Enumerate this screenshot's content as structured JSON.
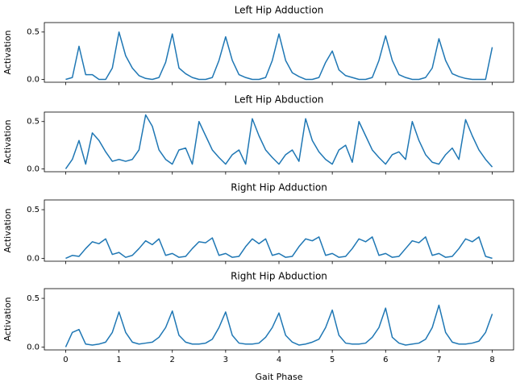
{
  "chart_data": [
    {
      "type": "line",
      "title": "Left Hip Adduction",
      "ylabel": "Activation",
      "color": "#1f77b4",
      "x": [
        0,
        0.125,
        0.25,
        0.375,
        0.5,
        0.625,
        0.75,
        0.875,
        1,
        1.125,
        1.25,
        1.375,
        1.5,
        1.625,
        1.75,
        1.875,
        2,
        2.125,
        2.25,
        2.375,
        2.5,
        2.625,
        2.75,
        2.875,
        3,
        3.125,
        3.25,
        3.375,
        3.5,
        3.625,
        3.75,
        3.875,
        4,
        4.125,
        4.25,
        4.375,
        4.5,
        4.625,
        4.75,
        4.875,
        5,
        5.125,
        5.25,
        5.375,
        5.5,
        5.625,
        5.75,
        5.875,
        6,
        6.125,
        6.25,
        6.375,
        6.5,
        6.625,
        6.75,
        6.875,
        7,
        7.125,
        7.25,
        7.375,
        7.5,
        7.625,
        7.75,
        7.875,
        8
      ],
      "values": [
        0,
        0.02,
        0.35,
        0.05,
        0.05,
        0,
        0,
        0.12,
        0.5,
        0.25,
        0.12,
        0.04,
        0.01,
        0,
        0.02,
        0.18,
        0.48,
        0.12,
        0.06,
        0.02,
        0,
        0,
        0.02,
        0.2,
        0.45,
        0.2,
        0.05,
        0.02,
        0,
        0,
        0.02,
        0.2,
        0.48,
        0.2,
        0.07,
        0.03,
        0,
        0,
        0.02,
        0.18,
        0.3,
        0.1,
        0.04,
        0.02,
        0,
        0,
        0.02,
        0.2,
        0.46,
        0.2,
        0.05,
        0.02,
        0,
        0,
        0.02,
        0.12,
        0.43,
        0.2,
        0.06,
        0.03,
        0.01,
        0,
        0,
        0,
        0.34
      ],
      "xlim": [
        -0.4,
        8.4
      ],
      "xticks": [
        0,
        1,
        2,
        3,
        4,
        5,
        6,
        7,
        8
      ],
      "ylim": [
        -0.03,
        0.6
      ],
      "yticks": [
        {
          "value": 0,
          "label": "0.0"
        },
        0.5
      ]
    },
    {
      "type": "line",
      "title": "Left Hip Abduction",
      "ylabel": "Activation",
      "color": "#1f77b4",
      "x": [
        0,
        0.125,
        0.25,
        0.375,
        0.5,
        0.625,
        0.75,
        0.875,
        1,
        1.125,
        1.25,
        1.375,
        1.5,
        1.625,
        1.75,
        1.875,
        2,
        2.125,
        2.25,
        2.375,
        2.5,
        2.625,
        2.75,
        2.875,
        3,
        3.125,
        3.25,
        3.375,
        3.5,
        3.625,
        3.75,
        3.875,
        4,
        4.125,
        4.25,
        4.375,
        4.5,
        4.625,
        4.75,
        4.875,
        5,
        5.125,
        5.25,
        5.375,
        5.5,
        5.625,
        5.75,
        5.875,
        6,
        6.125,
        6.25,
        6.375,
        6.5,
        6.625,
        6.75,
        6.875,
        7,
        7.125,
        7.25,
        7.375,
        7.5,
        7.625,
        7.75,
        7.875,
        8
      ],
      "values": [
        0,
        0.1,
        0.3,
        0.05,
        0.38,
        0.3,
        0.18,
        0.08,
        0.1,
        0.08,
        0.1,
        0.2,
        0.57,
        0.45,
        0.2,
        0.1,
        0.05,
        0.2,
        0.22,
        0.05,
        0.5,
        0.35,
        0.2,
        0.12,
        0.05,
        0.15,
        0.2,
        0.05,
        0.53,
        0.35,
        0.2,
        0.12,
        0.05,
        0.15,
        0.2,
        0.08,
        0.53,
        0.3,
        0.18,
        0.1,
        0.05,
        0.2,
        0.25,
        0.07,
        0.5,
        0.35,
        0.2,
        0.12,
        0.05,
        0.15,
        0.18,
        0.1,
        0.5,
        0.3,
        0.15,
        0.07,
        0.05,
        0.15,
        0.22,
        0.1,
        0.52,
        0.35,
        0.2,
        0.1,
        0.02
      ],
      "xlim": [
        -0.4,
        8.4
      ],
      "xticks": [
        0,
        1,
        2,
        3,
        4,
        5,
        6,
        7,
        8
      ],
      "ylim": [
        -0.03,
        0.6
      ],
      "yticks": [
        {
          "value": 0,
          "label": "0.0"
        },
        0.5
      ]
    },
    {
      "type": "line",
      "title": "Right Hip Adduction",
      "ylabel": "Activation",
      "color": "#1f77b4",
      "x": [
        0,
        0.125,
        0.25,
        0.375,
        0.5,
        0.625,
        0.75,
        0.875,
        1,
        1.125,
        1.25,
        1.375,
        1.5,
        1.625,
        1.75,
        1.875,
        2,
        2.125,
        2.25,
        2.375,
        2.5,
        2.625,
        2.75,
        2.875,
        3,
        3.125,
        3.25,
        3.375,
        3.5,
        3.625,
        3.75,
        3.875,
        4,
        4.125,
        4.25,
        4.375,
        4.5,
        4.625,
        4.75,
        4.875,
        5,
        5.125,
        5.25,
        5.375,
        5.5,
        5.625,
        5.75,
        5.875,
        6,
        6.125,
        6.25,
        6.375,
        6.5,
        6.625,
        6.75,
        6.875,
        7,
        7.125,
        7.25,
        7.375,
        7.5,
        7.625,
        7.75,
        7.875,
        8
      ],
      "values": [
        0,
        0.03,
        0.02,
        0.1,
        0.17,
        0.15,
        0.2,
        0.04,
        0.06,
        0.01,
        0.03,
        0.1,
        0.18,
        0.14,
        0.2,
        0.03,
        0.05,
        0.01,
        0.02,
        0.1,
        0.17,
        0.16,
        0.21,
        0.03,
        0.05,
        0.01,
        0.02,
        0.12,
        0.2,
        0.15,
        0.2,
        0.03,
        0.05,
        0.01,
        0.02,
        0.12,
        0.2,
        0.18,
        0.22,
        0.03,
        0.05,
        0.01,
        0.02,
        0.1,
        0.2,
        0.17,
        0.22,
        0.03,
        0.05,
        0.01,
        0.02,
        0.1,
        0.18,
        0.16,
        0.22,
        0.03,
        0.05,
        0.01,
        0.02,
        0.1,
        0.2,
        0.17,
        0.22,
        0.02,
        0
      ],
      "xlim": [
        -0.4,
        8.4
      ],
      "xticks": [
        0,
        1,
        2,
        3,
        4,
        5,
        6,
        7,
        8
      ],
      "ylim": [
        -0.03,
        0.6
      ],
      "yticks": [
        {
          "value": 0,
          "label": "0.0"
        },
        0.5
      ]
    },
    {
      "type": "line",
      "title": "Right Hip Abduction",
      "ylabel": "Activation",
      "xlabel": "Gait Phase",
      "color": "#1f77b4",
      "x": [
        0,
        0.125,
        0.25,
        0.375,
        0.5,
        0.625,
        0.75,
        0.875,
        1,
        1.125,
        1.25,
        1.375,
        1.5,
        1.625,
        1.75,
        1.875,
        2,
        2.125,
        2.25,
        2.375,
        2.5,
        2.625,
        2.75,
        2.875,
        3,
        3.125,
        3.25,
        3.375,
        3.5,
        3.625,
        3.75,
        3.875,
        4,
        4.125,
        4.25,
        4.375,
        4.5,
        4.625,
        4.75,
        4.875,
        5,
        5.125,
        5.25,
        5.375,
        5.5,
        5.625,
        5.75,
        5.875,
        6,
        6.125,
        6.25,
        6.375,
        6.5,
        6.625,
        6.75,
        6.875,
        7,
        7.125,
        7.25,
        7.375,
        7.5,
        7.625,
        7.75,
        7.875,
        8
      ],
      "values": [
        0,
        0.15,
        0.18,
        0.03,
        0.02,
        0.03,
        0.05,
        0.15,
        0.36,
        0.15,
        0.05,
        0.03,
        0.04,
        0.05,
        0.1,
        0.2,
        0.37,
        0.12,
        0.05,
        0.03,
        0.03,
        0.04,
        0.08,
        0.2,
        0.36,
        0.12,
        0.04,
        0.03,
        0.03,
        0.04,
        0.1,
        0.2,
        0.35,
        0.12,
        0.05,
        0.02,
        0.03,
        0.05,
        0.08,
        0.2,
        0.38,
        0.12,
        0.04,
        0.03,
        0.03,
        0.04,
        0.1,
        0.2,
        0.4,
        0.1,
        0.04,
        0.02,
        0.03,
        0.04,
        0.08,
        0.2,
        0.43,
        0.15,
        0.05,
        0.03,
        0.03,
        0.04,
        0.06,
        0.15,
        0.34
      ],
      "xlim": [
        -0.4,
        8.4
      ],
      "xticks": [
        0,
        1,
        2,
        3,
        4,
        5,
        6,
        7,
        8
      ],
      "ylim": [
        -0.03,
        0.6
      ],
      "yticks": [
        {
          "value": 0,
          "label": "0.0"
        },
        0.5
      ]
    }
  ]
}
